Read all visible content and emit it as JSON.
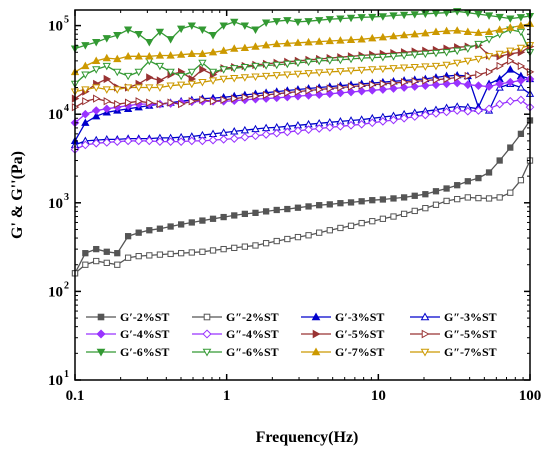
{
  "chart_data": {
    "type": "line",
    "xlabel": "Frequency(Hz)",
    "ylabel": "G' & G''(Pa)",
    "x_scale": "log",
    "y_scale": "log",
    "xlim": [
      0.1,
      100
    ],
    "ylim": [
      10,
      150000
    ],
    "x_ticks": [
      0.1,
      1,
      10,
      100
    ],
    "x_tick_labels": [
      "0.1",
      "1",
      "10",
      "100"
    ],
    "y_ticks": [
      10,
      100,
      1000,
      10000,
      100000
    ],
    "y_tick_labels": [
      "10",
      "10",
      "10",
      "10",
      "10"
    ],
    "y_tick_exponents": [
      "1",
      "2",
      "3",
      "4",
      "5"
    ],
    "grid": false,
    "legend_position": "bottom",
    "legend_columns": 4,
    "x": [
      0.1,
      0.117,
      0.138,
      0.162,
      0.19,
      0.224,
      0.263,
      0.309,
      0.363,
      0.427,
      0.501,
      0.589,
      0.692,
      0.813,
      0.955,
      1.122,
      1.318,
      1.549,
      1.82,
      2.138,
      2.512,
      2.951,
      3.467,
      4.074,
      4.786,
      5.623,
      6.607,
      7.762,
      9.12,
      10.715,
      12.589,
      14.791,
      17.378,
      20.417,
      23.988,
      28.184,
      33.113,
      38.905,
      45.709,
      53.703,
      63.096,
      74.131,
      87.096,
      100
    ],
    "series": [
      {
        "name": "G′-2%ST",
        "color": "#555555",
        "marker": "square",
        "filled": true,
        "values": [
          160,
          270,
          300,
          280,
          270,
          420,
          460,
          490,
          510,
          540,
          570,
          600,
          630,
          660,
          690,
          720,
          750,
          770,
          800,
          830,
          850,
          880,
          910,
          940,
          960,
          990,
          1010,
          1040,
          1070,
          1090,
          1120,
          1150,
          1200,
          1250,
          1350,
          1450,
          1580,
          1750,
          1900,
          2200,
          3000,
          4200,
          6000,
          8500
        ]
      },
      {
        "name": "G″-2%ST",
        "color": "#555555",
        "marker": "square",
        "filled": false,
        "values": [
          160,
          200,
          220,
          210,
          200,
          240,
          250,
          255,
          260,
          265,
          270,
          275,
          280,
          290,
          300,
          310,
          320,
          330,
          350,
          370,
          390,
          410,
          430,
          460,
          490,
          520,
          550,
          590,
          620,
          660,
          700,
          750,
          810,
          870,
          950,
          1050,
          1100,
          1150,
          1130,
          1120,
          1150,
          1300,
          1800,
          3000
        ]
      },
      {
        "name": "G′-3%ST",
        "color": "#0000cc",
        "marker": "triangle-up",
        "filled": true,
        "values": [
          5000,
          8000,
          9500,
          10500,
          11000,
          11500,
          12000,
          12500,
          13000,
          13500,
          14000,
          14500,
          15000,
          15200,
          15500,
          16000,
          16500,
          17000,
          17500,
          18000,
          18500,
          19000,
          19500,
          20000,
          20500,
          21000,
          21500,
          22000,
          22500,
          23000,
          23500,
          24000,
          24500,
          25000,
          26000,
          27000,
          27500,
          27000,
          12000,
          22000,
          25000,
          32000,
          27000,
          25000
        ]
      },
      {
        "name": "G″-3%ST",
        "color": "#0000cc",
        "marker": "triangle-up",
        "filled": false,
        "values": [
          4500,
          5000,
          5100,
          5200,
          5200,
          5300,
          5300,
          5300,
          5400,
          5400,
          5500,
          5600,
          5800,
          6000,
          6200,
          6400,
          6600,
          6800,
          7000,
          7100,
          7300,
          7500,
          7700,
          7900,
          8100,
          8300,
          8500,
          8700,
          9000,
          9300,
          9600,
          10000,
          10400,
          10800,
          11200,
          11800,
          12200,
          12000,
          11500,
          11000,
          20000,
          22000,
          20000,
          17000
        ]
      },
      {
        "name": "G′-4%ST",
        "color": "#9933ff",
        "marker": "diamond",
        "filled": true,
        "values": [
          8000,
          10000,
          11000,
          11500,
          12000,
          12500,
          13000,
          13000,
          13000,
          13200,
          13500,
          13800,
          14000,
          14000,
          14000,
          14200,
          14500,
          14800,
          15000,
          15300,
          15600,
          16000,
          16300,
          16600,
          17000,
          17400,
          17800,
          18200,
          18600,
          19000,
          19500,
          20000,
          20500,
          21000,
          21500,
          22000,
          22500,
          21500,
          21000,
          20500,
          22000,
          23000,
          24000,
          25000
        ]
      },
      {
        "name": "G″-4%ST",
        "color": "#9933ff",
        "marker": "diamond",
        "filled": false,
        "values": [
          4000,
          4500,
          4700,
          4800,
          4900,
          5000,
          5000,
          5000,
          4900,
          4900,
          4900,
          5000,
          5000,
          5100,
          5200,
          5300,
          5500,
          5700,
          5900,
          6100,
          6300,
          6500,
          6700,
          6900,
          7100,
          7300,
          7500,
          7700,
          8000,
          8300,
          8600,
          9000,
          9400,
          9800,
          10200,
          10600,
          11000,
          10800,
          11000,
          11500,
          13000,
          14000,
          14500,
          12000
        ]
      },
      {
        "name": "G′-5%ST",
        "color": "#993333",
        "marker": "triangle-right",
        "filled": true,
        "values": [
          15000,
          18000,
          22000,
          25000,
          20000,
          20000,
          22000,
          26000,
          24000,
          28000,
          30000,
          25000,
          32000,
          28000,
          33000,
          34000,
          35000,
          36000,
          37000,
          38000,
          39000,
          40000,
          41000,
          42000,
          43000,
          44000,
          45000,
          46000,
          47000,
          48000,
          49000,
          50000,
          51000,
          52000,
          53000,
          55000,
          57000,
          58000,
          60000,
          46000,
          45000,
          48000,
          50000,
          58000
        ]
      },
      {
        "name": "G″-5%ST",
        "color": "#993333",
        "marker": "triangle-right",
        "filled": false,
        "values": [
          12000,
          14000,
          15000,
          14000,
          13000,
          13500,
          14000,
          13500,
          13000,
          13500,
          13000,
          14000,
          14500,
          14000,
          14500,
          15000,
          15500,
          16000,
          16500,
          17000,
          17500,
          18000,
          18500,
          19000,
          19500,
          20000,
          20500,
          21000,
          21500,
          22000,
          22500,
          23000,
          23500,
          24000,
          24500,
          25000,
          26000,
          27000,
          28000,
          30000,
          35000,
          40000,
          35000,
          30000
        ]
      },
      {
        "name": "G′-6%ST",
        "color": "#339933",
        "marker": "triangle-down",
        "filled": true,
        "values": [
          55000,
          60000,
          65000,
          72000,
          78000,
          90000,
          80000,
          65000,
          85000,
          70000,
          92000,
          100000,
          90000,
          78000,
          100000,
          110000,
          100000,
          90000,
          108000,
          112000,
          115000,
          110000,
          112000,
          115000,
          118000,
          120000,
          122000,
          124000,
          125000,
          127000,
          130000,
          132000,
          134000,
          136000,
          138000,
          140000,
          145000,
          140000,
          135000,
          130000,
          125000,
          120000,
          124000,
          128000
        ]
      },
      {
        "name": "G″-6%ST",
        "color": "#339933",
        "marker": "triangle-down",
        "filled": false,
        "values": [
          22000,
          28000,
          32000,
          35000,
          30000,
          27000,
          30000,
          40000,
          35000,
          30000,
          27000,
          30000,
          38000,
          30000,
          32000,
          33000,
          34000,
          35000,
          35500,
          36000,
          37000,
          38000,
          39000,
          40000,
          40500,
          41000,
          42000,
          43000,
          43500,
          44000,
          45000,
          46000,
          47000,
          48000,
          49000,
          50000,
          52000,
          55000,
          62000,
          70000,
          80000,
          90000,
          85000,
          50000
        ]
      },
      {
        "name": "G′-7%ST",
        "color": "#cc9900",
        "marker": "triangle-up",
        "filled": true,
        "values": [
          30000,
          35000,
          40000,
          43000,
          42000,
          45000,
          45000,
          45000,
          46000,
          46000,
          47000,
          48000,
          48000,
          50000,
          52000,
          55000,
          56000,
          58000,
          60000,
          62000,
          63000,
          64000,
          65000,
          66000,
          67000,
          68000,
          69000,
          70000,
          72000,
          74000,
          76000,
          78000,
          80000,
          82000,
          85000,
          87000,
          88000,
          85000,
          83000,
          85000,
          90000,
          95000,
          100000,
          105000
        ]
      },
      {
        "name": "G″-7%ST",
        "color": "#cc9900",
        "marker": "triangle-down",
        "filled": false,
        "values": [
          18000,
          19000,
          20000,
          19000,
          19000,
          20000,
          20000,
          20000,
          20000,
          21000,
          21500,
          22000,
          23000,
          24000,
          25000,
          25500,
          26000,
          26500,
          27000,
          27500,
          28000,
          28500,
          29000,
          29500,
          30000,
          30500,
          31000,
          31500,
          32000,
          32500,
          33000,
          33500,
          34000,
          34500,
          35000,
          36000,
          38000,
          40000,
          42000,
          45000,
          48000,
          52000,
          56000,
          60000
        ]
      }
    ]
  }
}
